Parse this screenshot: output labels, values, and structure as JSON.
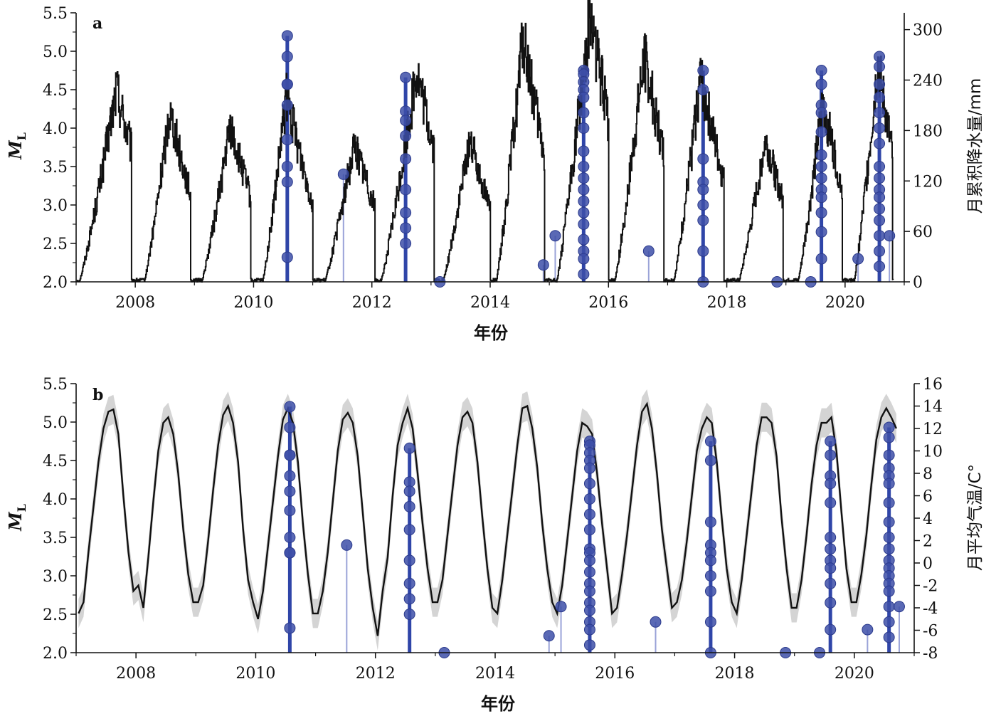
{
  "chart_data": [
    {
      "panel": "a",
      "type": "line",
      "xlabel": "年份",
      "ylabel": "M",
      "ylabel_sub": "L",
      "y2label": "月累积降水量/mm",
      "xlim": [
        2007.0,
        2021.0
      ],
      "ylim": [
        2.0,
        5.5
      ],
      "y2lim": [
        0,
        320
      ],
      "xticks": [
        2008,
        2010,
        2012,
        2014,
        2016,
        2018,
        2020
      ],
      "yticks": [
        2.0,
        2.5,
        3.0,
        3.5,
        4.0,
        4.5,
        5.0,
        5.5
      ],
      "ytick_labels": [
        "2.0",
        "2.5",
        "3.0",
        "3.5",
        "4.0",
        "4.5",
        "5.0",
        "5.5"
      ],
      "y2ticks": [
        0,
        60,
        120,
        180,
        240,
        300
      ],
      "grid": false,
      "line_series": {
        "axis": "right",
        "seasonal_peaks": [
          {
            "year": 2007,
            "start": 2007.05,
            "peak": 2007.68,
            "end": 2007.93,
            "max": 230
          },
          {
            "year": 2008,
            "start": 2008.15,
            "peak": 2008.58,
            "end": 2008.93,
            "max": 205
          },
          {
            "year": 2009,
            "start": 2009.12,
            "peak": 2009.6,
            "end": 2009.95,
            "max": 185
          },
          {
            "year": 2010,
            "start": 2010.15,
            "peak": 2010.55,
            "end": 2011.0,
            "max": 220
          },
          {
            "year": 2011,
            "start": 2011.2,
            "peak": 2011.7,
            "end": 2012.05,
            "max": 165
          },
          {
            "year": 2012,
            "start": 2012.15,
            "peak": 2012.75,
            "end": 2013.05,
            "max": 250
          },
          {
            "year": 2013,
            "start": 2013.2,
            "peak": 2013.65,
            "end": 2014.0,
            "max": 170
          },
          {
            "year": 2014,
            "start": 2014.1,
            "peak": 2014.55,
            "end": 2014.92,
            "max": 290
          },
          {
            "year": 2015,
            "start": 2015.12,
            "peak": 2015.68,
            "end": 2016.0,
            "max": 320
          },
          {
            "year": 2016,
            "start": 2016.1,
            "peak": 2016.6,
            "end": 2016.93,
            "max": 270
          },
          {
            "year": 2017,
            "start": 2017.1,
            "peak": 2017.55,
            "end": 2017.95,
            "max": 245
          },
          {
            "year": 2018,
            "start": 2018.2,
            "peak": 2018.65,
            "end": 2018.95,
            "max": 170
          },
          {
            "year": 2019,
            "start": 2019.2,
            "peak": 2019.62,
            "end": 2019.95,
            "max": 215
          },
          {
            "year": 2020,
            "start": 2020.15,
            "peak": 2020.55,
            "end": 2020.8,
            "max": 260
          }
        ]
      },
      "events": {
        "axis": "left",
        "marker": "circle+stem",
        "color": "#3d4fa8",
        "points": [
          [
            2010.57,
            5.2
          ],
          [
            2010.57,
            4.93
          ],
          [
            2010.57,
            4.57
          ],
          [
            2010.57,
            4.57
          ],
          [
            2010.57,
            4.3
          ],
          [
            2010.57,
            3.85
          ],
          [
            2010.57,
            3.5
          ],
          [
            2010.57,
            3.3
          ],
          [
            2010.57,
            2.32
          ],
          [
            2011.52,
            3.4
          ],
          [
            2012.57,
            4.66
          ],
          [
            2012.57,
            4.22
          ],
          [
            2012.57,
            4.1
          ],
          [
            2012.57,
            3.9
          ],
          [
            2012.57,
            3.6
          ],
          [
            2012.57,
            3.2
          ],
          [
            2012.57,
            2.9
          ],
          [
            2012.57,
            2.7
          ],
          [
            2012.57,
            2.5
          ],
          [
            2013.15,
            2.0
          ],
          [
            2014.9,
            2.22
          ],
          [
            2015.1,
            2.6
          ],
          [
            2015.58,
            4.75
          ],
          [
            2015.58,
            4.7
          ],
          [
            2015.58,
            4.6
          ],
          [
            2015.58,
            4.5
          ],
          [
            2015.58,
            4.4
          ],
          [
            2015.58,
            4.2
          ],
          [
            2015.58,
            4.0
          ],
          [
            2015.58,
            3.7
          ],
          [
            2015.58,
            3.5
          ],
          [
            2015.58,
            3.35
          ],
          [
            2015.58,
            3.2
          ],
          [
            2015.58,
            3.05
          ],
          [
            2015.58,
            2.9
          ],
          [
            2015.58,
            2.75
          ],
          [
            2015.58,
            2.55
          ],
          [
            2015.58,
            2.4
          ],
          [
            2015.58,
            2.3
          ],
          [
            2015.58,
            2.1
          ],
          [
            2016.68,
            2.4
          ],
          [
            2017.6,
            4.75
          ],
          [
            2017.6,
            4.5
          ],
          [
            2017.6,
            3.6
          ],
          [
            2017.6,
            3.3
          ],
          [
            2017.6,
            3.2
          ],
          [
            2017.6,
            3.0
          ],
          [
            2017.6,
            2.8
          ],
          [
            2017.6,
            2.4
          ],
          [
            2017.6,
            2.0
          ],
          [
            2018.85,
            2.0
          ],
          [
            2019.42,
            2.0
          ],
          [
            2019.6,
            4.75
          ],
          [
            2019.6,
            4.57
          ],
          [
            2019.6,
            4.3
          ],
          [
            2019.6,
            4.2
          ],
          [
            2019.6,
            3.95
          ],
          [
            2019.6,
            3.65
          ],
          [
            2019.6,
            3.5
          ],
          [
            2019.6,
            3.35
          ],
          [
            2019.6,
            3.2
          ],
          [
            2019.6,
            3.1
          ],
          [
            2019.6,
            2.9
          ],
          [
            2019.6,
            2.65
          ],
          [
            2019.6,
            2.3
          ],
          [
            2020.22,
            2.3
          ],
          [
            2020.58,
            4.93
          ],
          [
            2020.58,
            4.8
          ],
          [
            2020.58,
            4.57
          ],
          [
            2020.58,
            4.4
          ],
          [
            2020.58,
            4.2
          ],
          [
            2020.58,
            4.0
          ],
          [
            2020.58,
            3.8
          ],
          [
            2020.58,
            3.5
          ],
          [
            2020.58,
            3.35
          ],
          [
            2020.58,
            3.2
          ],
          [
            2020.58,
            3.1
          ],
          [
            2020.58,
            2.95
          ],
          [
            2020.58,
            2.8
          ],
          [
            2020.58,
            2.6
          ],
          [
            2020.58,
            2.4
          ],
          [
            2020.58,
            2.2
          ],
          [
            2020.75,
            2.6
          ]
        ]
      }
    },
    {
      "panel": "b",
      "type": "line",
      "xlabel": "年份",
      "ylabel": "M",
      "ylabel_sub": "L",
      "y2label": "月平均气温/C°",
      "xlim": [
        2007.0,
        2021.0
      ],
      "ylim": [
        2.0,
        5.5
      ],
      "y2lim": [
        -8,
        16
      ],
      "xticks": [
        2008,
        2010,
        2012,
        2014,
        2016,
        2018,
        2020
      ],
      "yticks": [
        2.0,
        2.5,
        3.0,
        3.5,
        4.0,
        4.5,
        5.0,
        5.5
      ],
      "ytick_labels": [
        "2.0",
        "2.5",
        "3.0",
        "3.5",
        "4.0",
        "4.5",
        "5.0",
        "5.5"
      ],
      "y2ticks": [
        -8,
        -6,
        -4,
        -2,
        0,
        2,
        4,
        6,
        8,
        10,
        12,
        14,
        16
      ],
      "grid": false,
      "line_series": {
        "axis": "right",
        "band": "grey",
        "band_halfwidth": 1.3,
        "monthly_mean": {
          "x_start": 2007.04,
          "step": 0.0833,
          "values": [
            -4.5,
            -3.5,
            1.0,
            5.0,
            9.0,
            12.0,
            13.5,
            13.7,
            11.5,
            6.0,
            1.0,
            -2.5,
            -2.0,
            -4.0,
            0.5,
            5.5,
            10.0,
            12.5,
            13.0,
            11.5,
            8.0,
            3.0,
            -1.0,
            -3.5,
            -3.5,
            -2.0,
            2.0,
            6.5,
            10.5,
            13.2,
            14.0,
            12.5,
            9.0,
            3.0,
            -1.5,
            -3.5,
            -5.0,
            -2.5,
            1.5,
            5.5,
            9.5,
            12.8,
            13.8,
            12.5,
            9.0,
            3.5,
            -1.0,
            -4.5,
            -4.5,
            -2.5,
            1.0,
            5.5,
            10.0,
            12.8,
            13.4,
            12.5,
            9.5,
            4.5,
            -0.5,
            -4.0,
            -6.5,
            -2.5,
            0.5,
            6.0,
            10.5,
            12.5,
            13.8,
            12.0,
            8.0,
            3.5,
            -0.5,
            -3.5,
            -3.5,
            -1.5,
            2.5,
            6.5,
            10.5,
            13.0,
            13.5,
            12.5,
            9.0,
            4.0,
            -0.5,
            -4.0,
            -4.5,
            -1.5,
            2.5,
            6.5,
            10.5,
            13.8,
            14.0,
            12.0,
            8.5,
            3.5,
            -0.5,
            -3.5,
            -4.5,
            -2.0,
            2.0,
            6.0,
            10.0,
            12.5,
            12.2,
            11.5,
            8.0,
            3.5,
            -0.5,
            -4.5,
            -4.0,
            -1.0,
            2.5,
            6.5,
            10.5,
            13.5,
            14.2,
            12.0,
            8.0,
            3.0,
            -0.5,
            -4.0,
            -3.5,
            -1.5,
            2.0,
            6.0,
            10.0,
            12.0,
            13.0,
            12.5,
            9.0,
            4.0,
            -0.5,
            -3.5,
            -4.5,
            -1.5,
            2.5,
            6.5,
            10.5,
            13.0,
            13.0,
            12.5,
            9.5,
            4.0,
            -0.5,
            -4.0,
            -4.0,
            -1.5,
            2.5,
            7.0,
            10.5,
            12.5,
            12.5,
            13.0,
            10.0,
            4.5,
            -0.5,
            -3.5,
            -3.5,
            -1.0,
            2.5,
            7.0,
            11.0,
            13.0,
            13.8,
            13.0,
            12.0
          ]
        }
      },
      "events": {
        "axis": "left",
        "marker": "circle+stem",
        "color": "#3d4fa8",
        "points": [
          [
            2010.57,
            5.2
          ],
          [
            2010.57,
            4.93
          ],
          [
            2010.57,
            4.57
          ],
          [
            2010.57,
            4.57
          ],
          [
            2010.57,
            4.3
          ],
          [
            2010.57,
            4.1
          ],
          [
            2010.57,
            3.85
          ],
          [
            2010.57,
            3.5
          ],
          [
            2010.57,
            3.3
          ],
          [
            2010.57,
            3.3
          ],
          [
            2010.57,
            2.32
          ],
          [
            2011.52,
            3.4
          ],
          [
            2012.57,
            4.66
          ],
          [
            2012.57,
            4.22
          ],
          [
            2012.57,
            4.1
          ],
          [
            2012.57,
            3.9
          ],
          [
            2012.57,
            3.6
          ],
          [
            2012.57,
            3.2
          ],
          [
            2012.57,
            2.9
          ],
          [
            2012.57,
            2.7
          ],
          [
            2012.57,
            2.5
          ],
          [
            2013.15,
            2.0
          ],
          [
            2014.9,
            2.22
          ],
          [
            2015.1,
            2.6
          ],
          [
            2015.58,
            4.75
          ],
          [
            2015.58,
            4.7
          ],
          [
            2015.58,
            4.6
          ],
          [
            2015.58,
            4.5
          ],
          [
            2015.58,
            4.4
          ],
          [
            2015.58,
            4.2
          ],
          [
            2015.58,
            4.0
          ],
          [
            2015.58,
            3.8
          ],
          [
            2015.58,
            3.6
          ],
          [
            2015.58,
            3.35
          ],
          [
            2015.58,
            3.3
          ],
          [
            2015.58,
            3.2
          ],
          [
            2015.58,
            3.05
          ],
          [
            2015.58,
            2.9
          ],
          [
            2015.58,
            2.8
          ],
          [
            2015.58,
            2.65
          ],
          [
            2015.58,
            2.55
          ],
          [
            2015.58,
            2.4
          ],
          [
            2015.58,
            2.3
          ],
          [
            2015.58,
            2.1
          ],
          [
            2016.68,
            2.4
          ],
          [
            2017.6,
            4.75
          ],
          [
            2017.6,
            4.5
          ],
          [
            2017.6,
            3.7
          ],
          [
            2017.6,
            3.4
          ],
          [
            2017.6,
            3.3
          ],
          [
            2017.6,
            3.2
          ],
          [
            2017.6,
            3.0
          ],
          [
            2017.6,
            2.8
          ],
          [
            2017.6,
            2.4
          ],
          [
            2017.6,
            2.0
          ],
          [
            2018.85,
            2.0
          ],
          [
            2019.42,
            2.0
          ],
          [
            2019.6,
            4.75
          ],
          [
            2019.6,
            4.57
          ],
          [
            2019.6,
            4.3
          ],
          [
            2019.6,
            4.2
          ],
          [
            2019.6,
            3.95
          ],
          [
            2019.6,
            3.5
          ],
          [
            2019.6,
            3.35
          ],
          [
            2019.6,
            3.2
          ],
          [
            2019.6,
            3.1
          ],
          [
            2019.6,
            2.9
          ],
          [
            2019.6,
            2.65
          ],
          [
            2019.6,
            2.3
          ],
          [
            2020.22,
            2.3
          ],
          [
            2020.58,
            4.93
          ],
          [
            2020.58,
            4.8
          ],
          [
            2020.58,
            4.57
          ],
          [
            2020.58,
            4.4
          ],
          [
            2020.58,
            4.3
          ],
          [
            2020.58,
            4.2
          ],
          [
            2020.58,
            3.95
          ],
          [
            2020.58,
            3.7
          ],
          [
            2020.58,
            3.5
          ],
          [
            2020.58,
            3.35
          ],
          [
            2020.58,
            3.2
          ],
          [
            2020.58,
            3.1
          ],
          [
            2020.58,
            3.0
          ],
          [
            2020.58,
            2.9
          ],
          [
            2020.58,
            2.8
          ],
          [
            2020.58,
            2.6
          ],
          [
            2020.58,
            2.4
          ],
          [
            2020.58,
            2.2
          ],
          [
            2020.75,
            2.6
          ]
        ]
      }
    }
  ],
  "colors": {
    "line": "#111111",
    "band": "#d4d4d4",
    "event_marker": "#3d4fa8",
    "event_stem": "#9aa3d8",
    "event_stem_dense": "#2f45a8"
  }
}
